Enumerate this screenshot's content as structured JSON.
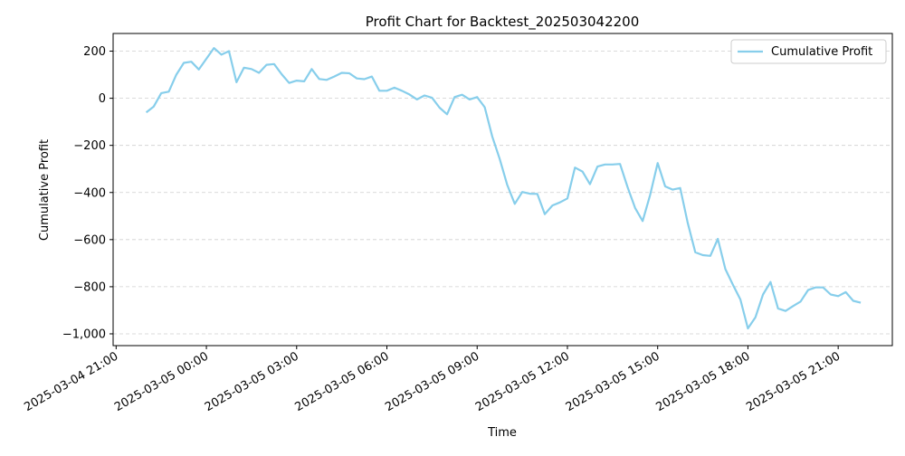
{
  "chart_data": {
    "type": "line",
    "title": "Profit Chart for Backtest_202503042200",
    "xlabel": "Time",
    "ylabel": "Cumulative Profit",
    "ylim": [
      -1050,
      275
    ],
    "xlim_hours": [
      -0.1,
      25.8
    ],
    "grid": "y dashed",
    "legend_placement": "top-right",
    "line_color": "#87ceeb",
    "yticks": [
      200,
      0,
      -200,
      -400,
      -600,
      -800,
      -1000
    ],
    "ytick_labels": [
      "200",
      "0",
      "−200",
      "−400",
      "−600",
      "−800",
      "−1,000"
    ],
    "xticks": [
      {
        "label": "2025-03-04 21:00",
        "h": 0
      },
      {
        "label": "2025-03-05 00:00",
        "h": 3
      },
      {
        "label": "2025-03-05 03:00",
        "h": 6
      },
      {
        "label": "2025-03-05 06:00",
        "h": 9
      },
      {
        "label": "2025-03-05 09:00",
        "h": 12
      },
      {
        "label": "2025-03-05 12:00",
        "h": 15
      },
      {
        "label": "2025-03-05 15:00",
        "h": 18
      },
      {
        "label": "2025-03-05 18:00",
        "h": 21
      },
      {
        "label": "2025-03-05 21:00",
        "h": 24
      }
    ],
    "series": [
      {
        "name": "Cumulative Profit",
        "x_hours": [
          1.0,
          1.25,
          1.5,
          1.75,
          2.0,
          2.25,
          2.5,
          2.75,
          3.0,
          3.25,
          3.5,
          3.75,
          4.0,
          4.25,
          4.5,
          4.75,
          5.0,
          5.25,
          5.5,
          5.75,
          6.0,
          6.25,
          6.5,
          6.75,
          7.0,
          7.25,
          7.5,
          7.75,
          8.0,
          8.25,
          8.5,
          8.75,
          9.0,
          9.25,
          9.5,
          9.75,
          10.0,
          10.25,
          10.5,
          10.75,
          11.0,
          11.25,
          11.5,
          11.75,
          12.0,
          12.25,
          12.5,
          12.75,
          13.0,
          13.25,
          13.5,
          13.75,
          14.0,
          14.25,
          14.5,
          14.75,
          15.0,
          15.25,
          15.5,
          15.75,
          16.0,
          16.25,
          16.5,
          16.75,
          17.0,
          17.25,
          17.5,
          17.75,
          18.0,
          18.25,
          18.5,
          18.75,
          19.0,
          19.25,
          19.5,
          19.75,
          20.0,
          20.25,
          20.5,
          20.75,
          21.0,
          21.25,
          21.5,
          21.75,
          22.0,
          22.25,
          22.5,
          22.75,
          23.0,
          23.25,
          23.5,
          23.75,
          24.0,
          24.25,
          24.5,
          24.75
        ],
        "values": [
          -60,
          -35,
          22,
          28,
          100,
          150,
          155,
          122,
          168,
          213,
          185,
          200,
          68,
          130,
          124,
          108,
          142,
          145,
          102,
          65,
          75,
          72,
          124,
          82,
          78,
          92,
          108,
          106,
          84,
          81,
          92,
          32,
          32,
          45,
          32,
          16,
          -5,
          12,
          2,
          -40,
          -68,
          5,
          15,
          -5,
          5,
          -38,
          -162,
          -258,
          -368,
          -448,
          -398,
          -405,
          -406,
          -492,
          -455,
          -442,
          -425,
          -294,
          -311,
          -365,
          -290,
          -281,
          -281,
          -279,
          -378,
          -466,
          -521,
          -410,
          -275,
          -374,
          -388,
          -381,
          -529,
          -654,
          -666,
          -669,
          -597,
          -725,
          -791,
          -854,
          -977,
          -930,
          -833,
          -780,
          -892,
          -903,
          -882,
          -863,
          -814,
          -803,
          -803,
          -833,
          -840,
          -823,
          -860,
          -868
        ]
      }
    ]
  }
}
